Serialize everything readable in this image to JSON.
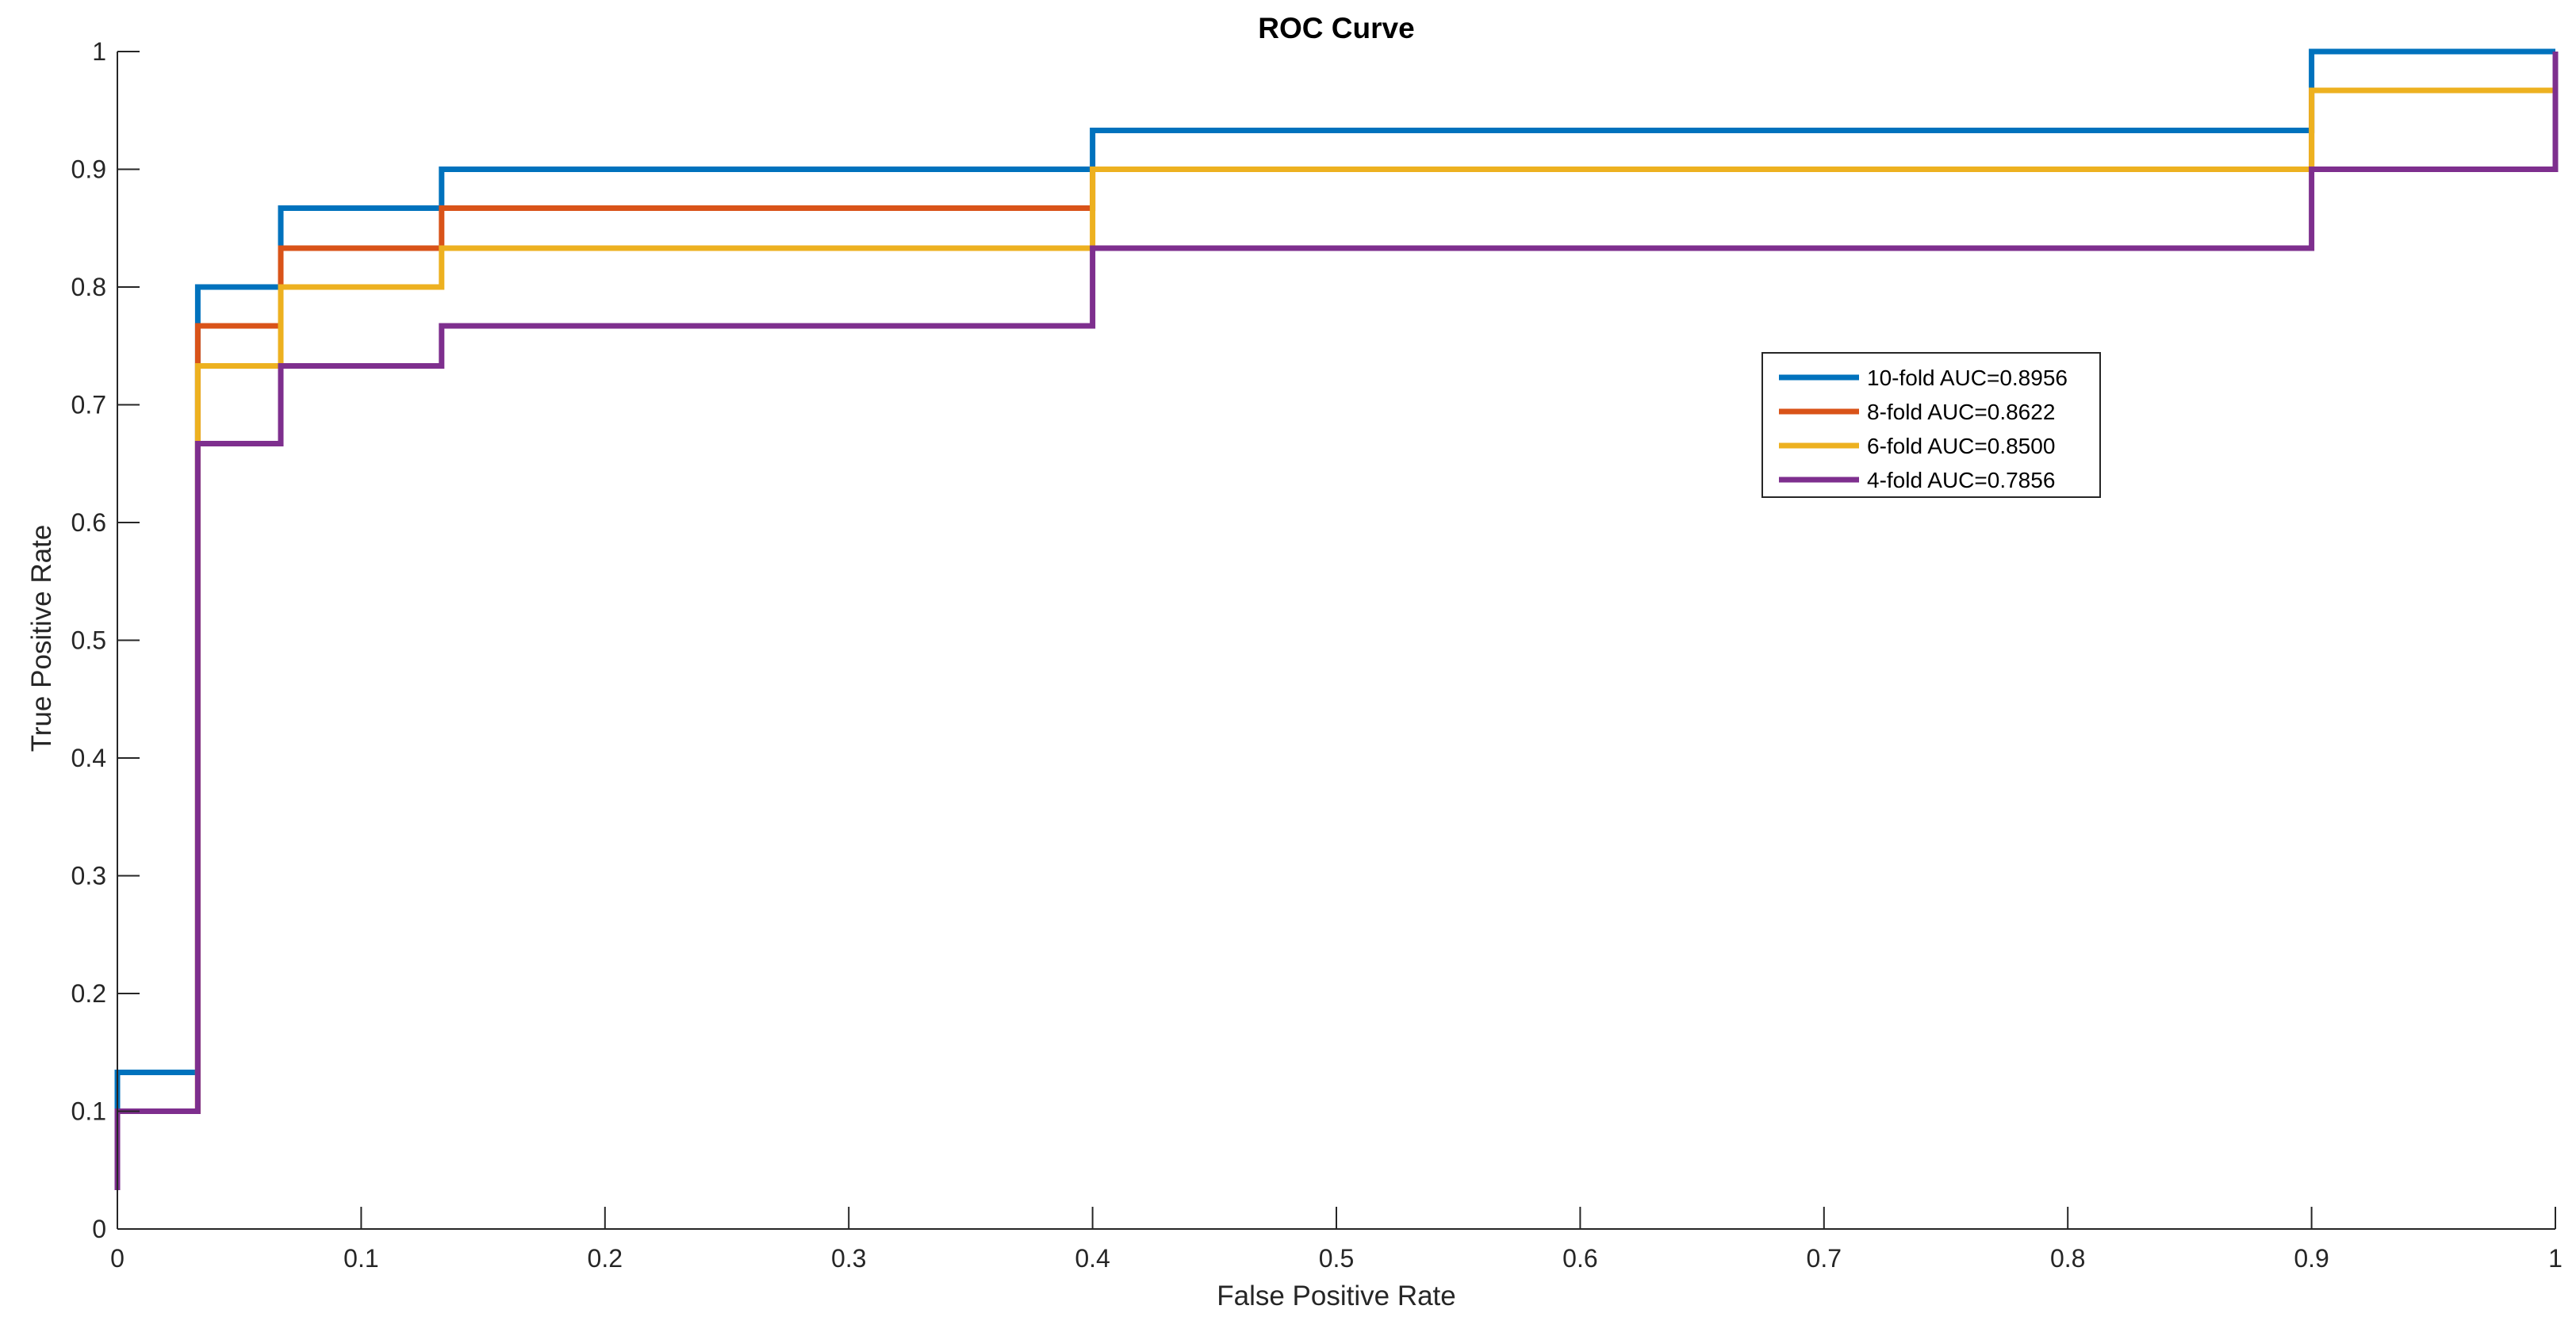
{
  "chart_data": {
    "type": "line",
    "title": "ROC Curve",
    "xlabel": "False Positive Rate",
    "ylabel": "True Positive Rate",
    "xlim": [
      0,
      1
    ],
    "ylim": [
      0,
      1
    ],
    "xticks": [
      "0",
      "0.1",
      "0.2",
      "0.3",
      "0.4",
      "0.5",
      "0.6",
      "0.7",
      "0.8",
      "0.9",
      "1"
    ],
    "yticks": [
      "0",
      "0.1",
      "0.2",
      "0.3",
      "0.4",
      "0.5",
      "0.6",
      "0.7",
      "0.8",
      "0.9",
      "1"
    ],
    "grid": false,
    "legend_position": "upper-right",
    "series": [
      {
        "name": "10-fold AUC=0.8956",
        "color": "#0072BD",
        "points": [
          [
            0,
            0.033
          ],
          [
            0,
            0.133
          ],
          [
            0.033,
            0.133
          ],
          [
            0.033,
            0.8
          ],
          [
            0.067,
            0.8
          ],
          [
            0.067,
            0.867
          ],
          [
            0.133,
            0.867
          ],
          [
            0.133,
            0.9
          ],
          [
            0.4,
            0.9
          ],
          [
            0.4,
            0.933
          ],
          [
            0.9,
            0.933
          ],
          [
            0.9,
            1.0
          ],
          [
            1.0,
            1.0
          ]
        ]
      },
      {
        "name": "8-fold AUC=0.8622",
        "color": "#D95319",
        "points": [
          [
            0,
            0.033
          ],
          [
            0,
            0.1
          ],
          [
            0.033,
            0.1
          ],
          [
            0.033,
            0.767
          ],
          [
            0.067,
            0.767
          ],
          [
            0.067,
            0.833
          ],
          [
            0.133,
            0.833
          ],
          [
            0.133,
            0.867
          ],
          [
            0.4,
            0.867
          ],
          [
            0.4,
            0.9
          ],
          [
            0.9,
            0.9
          ],
          [
            0.9,
            0.967
          ],
          [
            1.0,
            0.967
          ]
        ]
      },
      {
        "name": "6-fold AUC=0.8500",
        "color": "#EDB120",
        "points": [
          [
            0,
            0.033
          ],
          [
            0,
            0.1
          ],
          [
            0.033,
            0.1
          ],
          [
            0.033,
            0.733
          ],
          [
            0.067,
            0.733
          ],
          [
            0.067,
            0.8
          ],
          [
            0.133,
            0.8
          ],
          [
            0.133,
            0.833
          ],
          [
            0.4,
            0.833
          ],
          [
            0.4,
            0.9
          ],
          [
            0.9,
            0.9
          ],
          [
            0.9,
            0.967
          ],
          [
            1.0,
            0.967
          ]
        ]
      },
      {
        "name": "4-fold AUC=0.7856",
        "color": "#7E2F8E",
        "points": [
          [
            0,
            0.033
          ],
          [
            0,
            0.1
          ],
          [
            0.033,
            0.1
          ],
          [
            0.033,
            0.667
          ],
          [
            0.067,
            0.667
          ],
          [
            0.067,
            0.733
          ],
          [
            0.133,
            0.733
          ],
          [
            0.133,
            0.767
          ],
          [
            0.4,
            0.767
          ],
          [
            0.4,
            0.833
          ],
          [
            0.9,
            0.833
          ],
          [
            0.9,
            0.9
          ],
          [
            1.0,
            0.9
          ],
          [
            1.0,
            1.0
          ]
        ]
      }
    ]
  }
}
